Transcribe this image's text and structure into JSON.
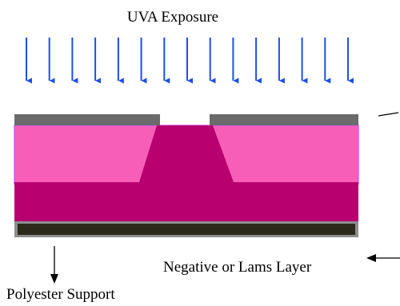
{
  "labels": {
    "uva_exposure": "UVA Exposure",
    "negative_layer": "Negative or Lams Layer",
    "polyester_support": "Polyester Support"
  },
  "colors": {
    "uv_arrow": "#1c4fe6",
    "mask": "#6b6b6b",
    "unexposed_polymer": "#f75eb8",
    "polymer_border": "#d65aff",
    "exposed_polymer": "#b8006e",
    "support_sheet": "#2c2a1a",
    "support_border": "#8e8e8e",
    "annotation_line": "#000000"
  },
  "uv_arrows": {
    "count": 15
  }
}
